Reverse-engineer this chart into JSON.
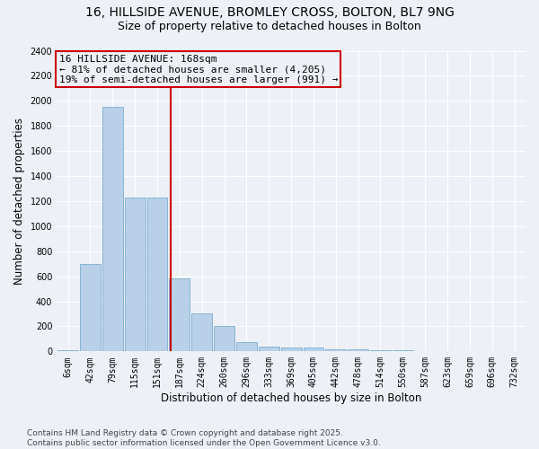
{
  "title1": "16, HILLSIDE AVENUE, BROMLEY CROSS, BOLTON, BL7 9NG",
  "title2": "Size of property relative to detached houses in Bolton",
  "xlabel": "Distribution of detached houses by size in Bolton",
  "ylabel": "Number of detached properties",
  "categories": [
    "6sqm",
    "42sqm",
    "79sqm",
    "115sqm",
    "151sqm",
    "187sqm",
    "224sqm",
    "260sqm",
    "296sqm",
    "333sqm",
    "369sqm",
    "405sqm",
    "442sqm",
    "478sqm",
    "514sqm",
    "550sqm",
    "587sqm",
    "623sqm",
    "659sqm",
    "696sqm",
    "732sqm"
  ],
  "bar_values": [
    10,
    700,
    1950,
    1230,
    1230,
    580,
    300,
    205,
    75,
    40,
    30,
    30,
    20,
    20,
    10,
    10,
    5,
    4,
    3,
    2,
    1
  ],
  "bar_color": "#b8d0e8",
  "bar_edge_color": "#7aaccf",
  "bar_edge_width": 0.6,
  "vline_x": 4.6,
  "vline_color": "#cc0000",
  "annotation_line1": "16 HILLSIDE AVENUE: 168sqm",
  "annotation_line2": "← 81% of detached houses are smaller (4,205)",
  "annotation_line3": "19% of semi-detached houses are larger (991) →",
  "annotation_box_color": "#cc0000",
  "annotation_text_color": "#000000",
  "ylim": [
    0,
    2400
  ],
  "yticks": [
    0,
    200,
    400,
    600,
    800,
    1000,
    1200,
    1400,
    1600,
    1800,
    2000,
    2200,
    2400
  ],
  "background_color": "#edf1f7",
  "grid_color": "#ffffff",
  "footer_text": "Contains HM Land Registry data © Crown copyright and database right 2025.\nContains public sector information licensed under the Open Government Licence v3.0.",
  "title1_fontsize": 10,
  "title2_fontsize": 9,
  "xlabel_fontsize": 8.5,
  "ylabel_fontsize": 8.5,
  "tick_fontsize": 7,
  "footer_fontsize": 6.5,
  "annot_fontsize": 8
}
